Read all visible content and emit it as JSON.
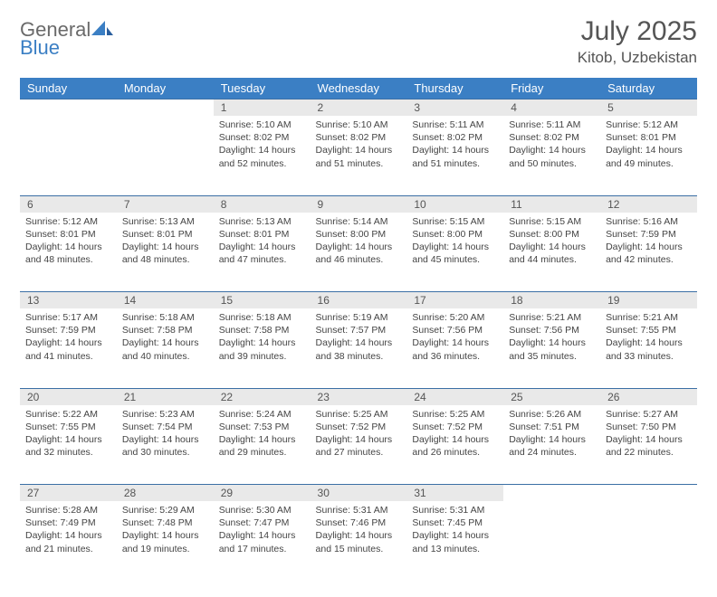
{
  "brand": {
    "word1": "General",
    "word2": "Blue"
  },
  "title": "July 2025",
  "location": "Kitob, Uzbekistan",
  "colors": {
    "header_bg": "#3b7fc4",
    "header_fg": "#ffffff",
    "daynum_bg": "#e9e9e9",
    "rule": "#3b6fa5",
    "text": "#444444",
    "title_color": "#555555",
    "logo_gray": "#6a6a6a",
    "logo_blue": "#3b7fc4",
    "background": "#ffffff"
  },
  "typography": {
    "title_fontsize": 30,
    "location_fontsize": 17,
    "dayhead_fontsize": 13,
    "daynum_fontsize": 12,
    "cell_fontsize": 10.5
  },
  "dayHeaders": [
    "Sunday",
    "Monday",
    "Tuesday",
    "Wednesday",
    "Thursday",
    "Friday",
    "Saturday"
  ],
  "weeks": [
    [
      null,
      null,
      {
        "day": "1",
        "sunrise": "5:10 AM",
        "sunset": "8:02 PM",
        "daylight": "14 hours and 52 minutes."
      },
      {
        "day": "2",
        "sunrise": "5:10 AM",
        "sunset": "8:02 PM",
        "daylight": "14 hours and 51 minutes."
      },
      {
        "day": "3",
        "sunrise": "5:11 AM",
        "sunset": "8:02 PM",
        "daylight": "14 hours and 51 minutes."
      },
      {
        "day": "4",
        "sunrise": "5:11 AM",
        "sunset": "8:02 PM",
        "daylight": "14 hours and 50 minutes."
      },
      {
        "day": "5",
        "sunrise": "5:12 AM",
        "sunset": "8:01 PM",
        "daylight": "14 hours and 49 minutes."
      }
    ],
    [
      {
        "day": "6",
        "sunrise": "5:12 AM",
        "sunset": "8:01 PM",
        "daylight": "14 hours and 48 minutes."
      },
      {
        "day": "7",
        "sunrise": "5:13 AM",
        "sunset": "8:01 PM",
        "daylight": "14 hours and 48 minutes."
      },
      {
        "day": "8",
        "sunrise": "5:13 AM",
        "sunset": "8:01 PM",
        "daylight": "14 hours and 47 minutes."
      },
      {
        "day": "9",
        "sunrise": "5:14 AM",
        "sunset": "8:00 PM",
        "daylight": "14 hours and 46 minutes."
      },
      {
        "day": "10",
        "sunrise": "5:15 AM",
        "sunset": "8:00 PM",
        "daylight": "14 hours and 45 minutes."
      },
      {
        "day": "11",
        "sunrise": "5:15 AM",
        "sunset": "8:00 PM",
        "daylight": "14 hours and 44 minutes."
      },
      {
        "day": "12",
        "sunrise": "5:16 AM",
        "sunset": "7:59 PM",
        "daylight": "14 hours and 42 minutes."
      }
    ],
    [
      {
        "day": "13",
        "sunrise": "5:17 AM",
        "sunset": "7:59 PM",
        "daylight": "14 hours and 41 minutes."
      },
      {
        "day": "14",
        "sunrise": "5:18 AM",
        "sunset": "7:58 PM",
        "daylight": "14 hours and 40 minutes."
      },
      {
        "day": "15",
        "sunrise": "5:18 AM",
        "sunset": "7:58 PM",
        "daylight": "14 hours and 39 minutes."
      },
      {
        "day": "16",
        "sunrise": "5:19 AM",
        "sunset": "7:57 PM",
        "daylight": "14 hours and 38 minutes."
      },
      {
        "day": "17",
        "sunrise": "5:20 AM",
        "sunset": "7:56 PM",
        "daylight": "14 hours and 36 minutes."
      },
      {
        "day": "18",
        "sunrise": "5:21 AM",
        "sunset": "7:56 PM",
        "daylight": "14 hours and 35 minutes."
      },
      {
        "day": "19",
        "sunrise": "5:21 AM",
        "sunset": "7:55 PM",
        "daylight": "14 hours and 33 minutes."
      }
    ],
    [
      {
        "day": "20",
        "sunrise": "5:22 AM",
        "sunset": "7:55 PM",
        "daylight": "14 hours and 32 minutes."
      },
      {
        "day": "21",
        "sunrise": "5:23 AM",
        "sunset": "7:54 PM",
        "daylight": "14 hours and 30 minutes."
      },
      {
        "day": "22",
        "sunrise": "5:24 AM",
        "sunset": "7:53 PM",
        "daylight": "14 hours and 29 minutes."
      },
      {
        "day": "23",
        "sunrise": "5:25 AM",
        "sunset": "7:52 PM",
        "daylight": "14 hours and 27 minutes."
      },
      {
        "day": "24",
        "sunrise": "5:25 AM",
        "sunset": "7:52 PM",
        "daylight": "14 hours and 26 minutes."
      },
      {
        "day": "25",
        "sunrise": "5:26 AM",
        "sunset": "7:51 PM",
        "daylight": "14 hours and 24 minutes."
      },
      {
        "day": "26",
        "sunrise": "5:27 AM",
        "sunset": "7:50 PM",
        "daylight": "14 hours and 22 minutes."
      }
    ],
    [
      {
        "day": "27",
        "sunrise": "5:28 AM",
        "sunset": "7:49 PM",
        "daylight": "14 hours and 21 minutes."
      },
      {
        "day": "28",
        "sunrise": "5:29 AM",
        "sunset": "7:48 PM",
        "daylight": "14 hours and 19 minutes."
      },
      {
        "day": "29",
        "sunrise": "5:30 AM",
        "sunset": "7:47 PM",
        "daylight": "14 hours and 17 minutes."
      },
      {
        "day": "30",
        "sunrise": "5:31 AM",
        "sunset": "7:46 PM",
        "daylight": "14 hours and 15 minutes."
      },
      {
        "day": "31",
        "sunrise": "5:31 AM",
        "sunset": "7:45 PM",
        "daylight": "14 hours and 13 minutes."
      },
      null,
      null
    ]
  ],
  "labels": {
    "sunrise": "Sunrise:",
    "sunset": "Sunset:",
    "daylight": "Daylight:"
  }
}
